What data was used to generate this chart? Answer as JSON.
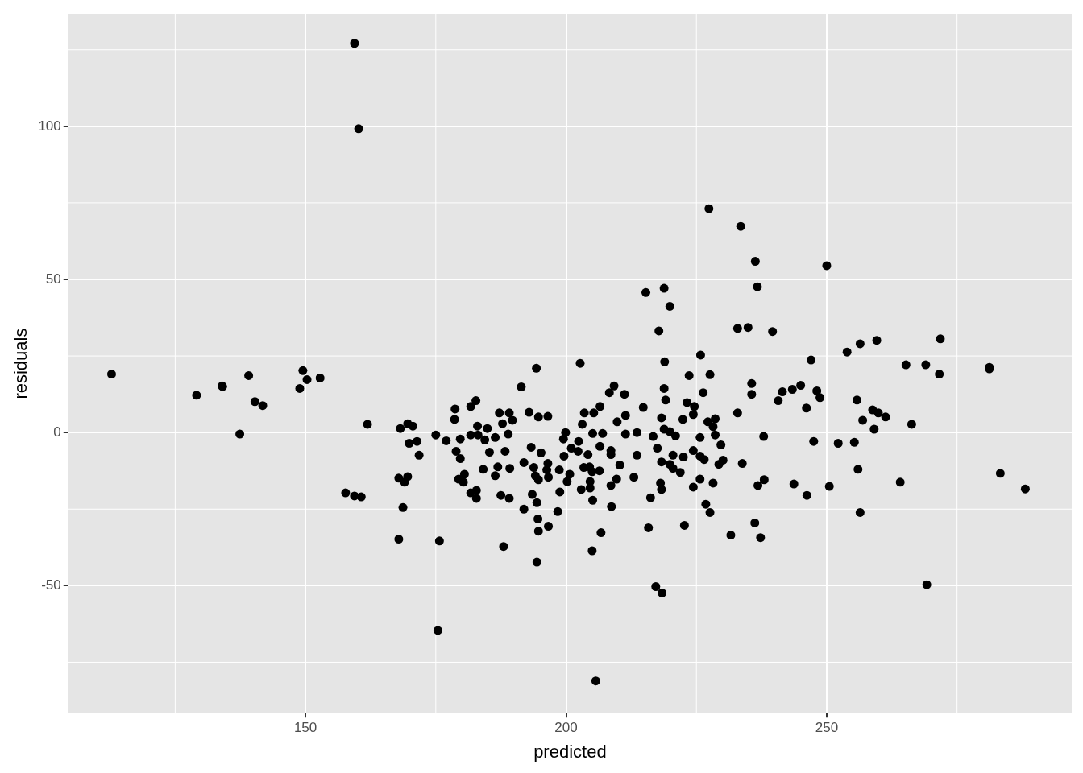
{
  "chart_data": {
    "type": "scatter",
    "xlabel": "predicted",
    "ylabel": "residuals",
    "xlim": [
      104.5,
      297
    ],
    "ylim": [
      -91.5,
      136.5
    ],
    "xticks": [
      150,
      200,
      250
    ],
    "yticks": [
      -50,
      0,
      50,
      100
    ],
    "grid": true,
    "legend": false,
    "marker": "circle",
    "series": [
      {
        "color": "#000000",
        "x": [
          112.8,
          129.1,
          134.0,
          134.1,
          137.4,
          139.1,
          140.3,
          141.8,
          148.9,
          149.5,
          150.3,
          152.8,
          157.7,
          159.4,
          160.7,
          161.9,
          159.4,
          160.2,
          168.2,
          169.6,
          170.6,
          169.9,
          171.4,
          171.8,
          167.9,
          169.6,
          169.0,
          168.7,
          167.9,
          175.7,
          175.0,
          177.0,
          178.7,
          178.6,
          179.7,
          178.9,
          179.7,
          181.7,
          182.7,
          181.7,
          183.0,
          184.9,
          184.4,
          183.1,
          186.4,
          185.3,
          188.3,
          187.2,
          189.1,
          189.7,
          187.8,
          188.9,
          191.4,
          194.3,
          202.7,
          192.9,
          194.7,
          196.5,
          199.9,
          199.5,
          202.4,
          201.0,
          202.3,
          204.2,
          203.5,
          205.3,
          206.5,
          203.1,
          205.1,
          207.0,
          206.5,
          208.6,
          208.6,
          209.2,
          211.2,
          209.8,
          211.4,
          211.4,
          210.3,
          193.3,
          195.2,
          199.6,
          191.9,
          193.8,
          196.5,
          196.3,
          198.7,
          200.7,
          194.1,
          194.7,
          196.6,
          200.2,
          203.4,
          204.5,
          205.0,
          206.4,
          204.6,
          204.6,
          202.9,
          205.1,
          208.6,
          209.7,
          208.7,
          206.7,
          205.0,
          198.8,
          198.4,
          193.5,
          194.4,
          191.9,
          194.6,
          196.6,
          194.7,
          194.4,
          188.0,
          184.1,
          186.9,
          186.4,
          189.2,
          180.5,
          179.4,
          180.3,
          181.7,
          182.8,
          182.8,
          187.5,
          189.1,
          227.4,
          233.5,
          236.3,
          250.0,
          236.7,
          215.3,
          218.8,
          219.9,
          217.8,
          232.9,
          234.9,
          239.6,
          256.4,
          253.9,
          225.8,
          218.9,
          247.0,
          223.6,
          227.6,
          235.6,
          235.6,
          226.3,
          218.8,
          219.1,
          223.2,
          224.6,
          224.4,
          222.4,
          218.3,
          227.2,
          228.6,
          228.2,
          228.6,
          225.7,
          229.7,
          232.9,
          237.9,
          241.5,
          243.4,
          245.0,
          248.1,
          248.7,
          240.7,
          246.1,
          255.8,
          256.9,
          247.5,
          252.2,
          255.3,
          256.0,
          256.4,
          233.8,
          238.0,
          236.8,
          243.7,
          246.2,
          250.5,
          236.2,
          231.6,
          237.3,
          208.3,
          214.8,
          213.6,
          216.7,
          218.8,
          219.9,
          221.0,
          217.5,
          213.6,
          220.5,
          222.5,
          224.4,
          225.7,
          226.5,
          230.1,
          229.3,
          218.3,
          219.9,
          220.5,
          221.9,
          225.7,
          228.2,
          224.4,
          218.1,
          218.3,
          213.0,
          216.2,
          226.8,
          227.6,
          222.7,
          215.8,
          217.2,
          218.4,
          205.7,
          175.4,
          269.2,
          259.6,
          271.8,
          265.2,
          269.0,
          271.6,
          281.2,
          281.2,
          258.8,
          259.9,
          261.3,
          259.1,
          266.3,
          264.1,
          283.3,
          288.1
        ],
        "values": [
          19.1,
          12.2,
          15.2,
          15.0,
          -0.5,
          18.6,
          10.1,
          8.8,
          14.4,
          20.2,
          17.3,
          17.8,
          -19.7,
          -20.7,
          -21.0,
          2.7,
          127.1,
          99.2,
          1.3,
          2.9,
          2.1,
          -3.5,
          -2.9,
          -7.4,
          -14.9,
          -14.4,
          -16.2,
          -24.5,
          -34.8,
          -35.4,
          -0.8,
          -2.7,
          7.7,
          4.3,
          -2.1,
          -6.1,
          -8.5,
          8.5,
          10.4,
          -0.8,
          2.1,
          1.3,
          -2.4,
          -0.8,
          -1.6,
          -6.4,
          -6.1,
          6.4,
          6.4,
          4.0,
          2.9,
          -0.5,
          14.9,
          21.0,
          22.6,
          6.6,
          5.1,
          5.3,
          0,
          -2.1,
          -2.9,
          -5.1,
          -6.1,
          -7.2,
          6.4,
          6.4,
          8.5,
          2.7,
          -0.3,
          -0.3,
          -4.5,
          -5.9,
          -7.2,
          15.2,
          12.5,
          3.5,
          5.6,
          -0.5,
          -10.6,
          -4.8,
          -6.6,
          -7.7,
          -9.8,
          -11.4,
          -10.1,
          -12.2,
          -12.2,
          -13.6,
          -14.1,
          -15.4,
          -14.6,
          -16.0,
          -11.4,
          -11.2,
          -12.8,
          -12.5,
          -16.0,
          -18.1,
          -18.6,
          -22.1,
          -17.3,
          -15.2,
          -24.2,
          -32.7,
          -38.6,
          -19.4,
          -25.8,
          -20.2,
          -22.9,
          -25.0,
          -28.2,
          -30.6,
          -32.2,
          -42.3,
          -37.2,
          -12.0,
          -11.2,
          -14.1,
          -11.7,
          -13.6,
          -15.2,
          -16.2,
          -19.7,
          -18.9,
          -21.5,
          -20.5,
          -21.5,
          73.1,
          67.3,
          55.9,
          54.5,
          47.6,
          45.7,
          47.1,
          41.2,
          33.2,
          34.0,
          34.3,
          33.0,
          29.0,
          26.3,
          25.3,
          23.1,
          23.7,
          18.6,
          18.9,
          16.0,
          12.5,
          13.0,
          14.4,
          10.6,
          9.8,
          8.5,
          5.9,
          4.3,
          4.8,
          3.5,
          4.5,
          1.9,
          -0.8,
          -1.6,
          -4.0,
          6.4,
          -1.3,
          13.3,
          14.1,
          15.4,
          13.6,
          11.4,
          10.4,
          8.0,
          10.6,
          4.0,
          -2.9,
          -3.5,
          -3.2,
          -12.0,
          -26.1,
          -10.1,
          -15.4,
          -17.3,
          -16.8,
          -20.5,
          -17.6,
          -29.5,
          -33.5,
          -34.3,
          13.0,
          8.2,
          0,
          -1.3,
          1.1,
          0.3,
          -1.1,
          -5.1,
          -7.4,
          -7.4,
          -8.0,
          -5.9,
          -7.7,
          -8.8,
          -9.0,
          -10.4,
          -9.6,
          -10.4,
          -11.7,
          -13.0,
          -15.2,
          -16.5,
          -17.8,
          -16.5,
          -18.6,
          -14.6,
          -21.3,
          -23.4,
          -26.1,
          -30.3,
          -31.1,
          -50.3,
          -52.4,
          -81.1,
          -64.6,
          -49.7,
          30.1,
          30.6,
          22.1,
          22.1,
          19.1,
          21.3,
          20.8,
          7.4,
          6.4,
          5.1,
          1.1,
          2.7,
          -16.2,
          -13.3,
          -18.4
        ]
      }
    ]
  }
}
